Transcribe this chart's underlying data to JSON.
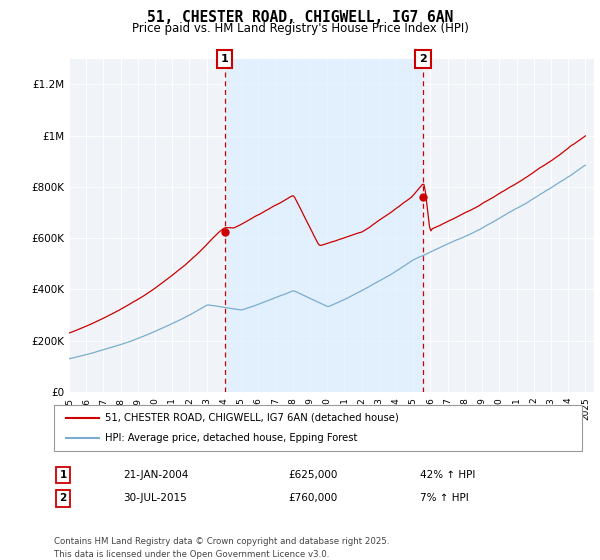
{
  "title": "51, CHESTER ROAD, CHIGWELL, IG7 6AN",
  "subtitle": "Price paid vs. HM Land Registry's House Price Index (HPI)",
  "legend_entry1": "51, CHESTER ROAD, CHIGWELL, IG7 6AN (detached house)",
  "legend_entry2": "HPI: Average price, detached house, Epping Forest",
  "annotation1_date": "21-JAN-2004",
  "annotation1_price": "£625,000",
  "annotation1_hpi": "42% ↑ HPI",
  "annotation2_date": "30-JUL-2015",
  "annotation2_price": "£760,000",
  "annotation2_hpi": "7% ↑ HPI",
  "footer": "Contains HM Land Registry data © Crown copyright and database right 2025.\nThis data is licensed under the Open Government Licence v3.0.",
  "red_color": "#cc0000",
  "blue_color": "#7aadce",
  "shade_color": "#ddeeff",
  "annotation_color": "#cc0000",
  "bg_color": "#ffffff",
  "plot_bg": "#f0f4f8",
  "grid_color": "#ffffff",
  "ylim_min": 0,
  "ylim_max": 1300000,
  "sale1_year": 2004.04,
  "sale1_price": 625000,
  "sale2_year": 2015.58,
  "sale2_price": 760000
}
